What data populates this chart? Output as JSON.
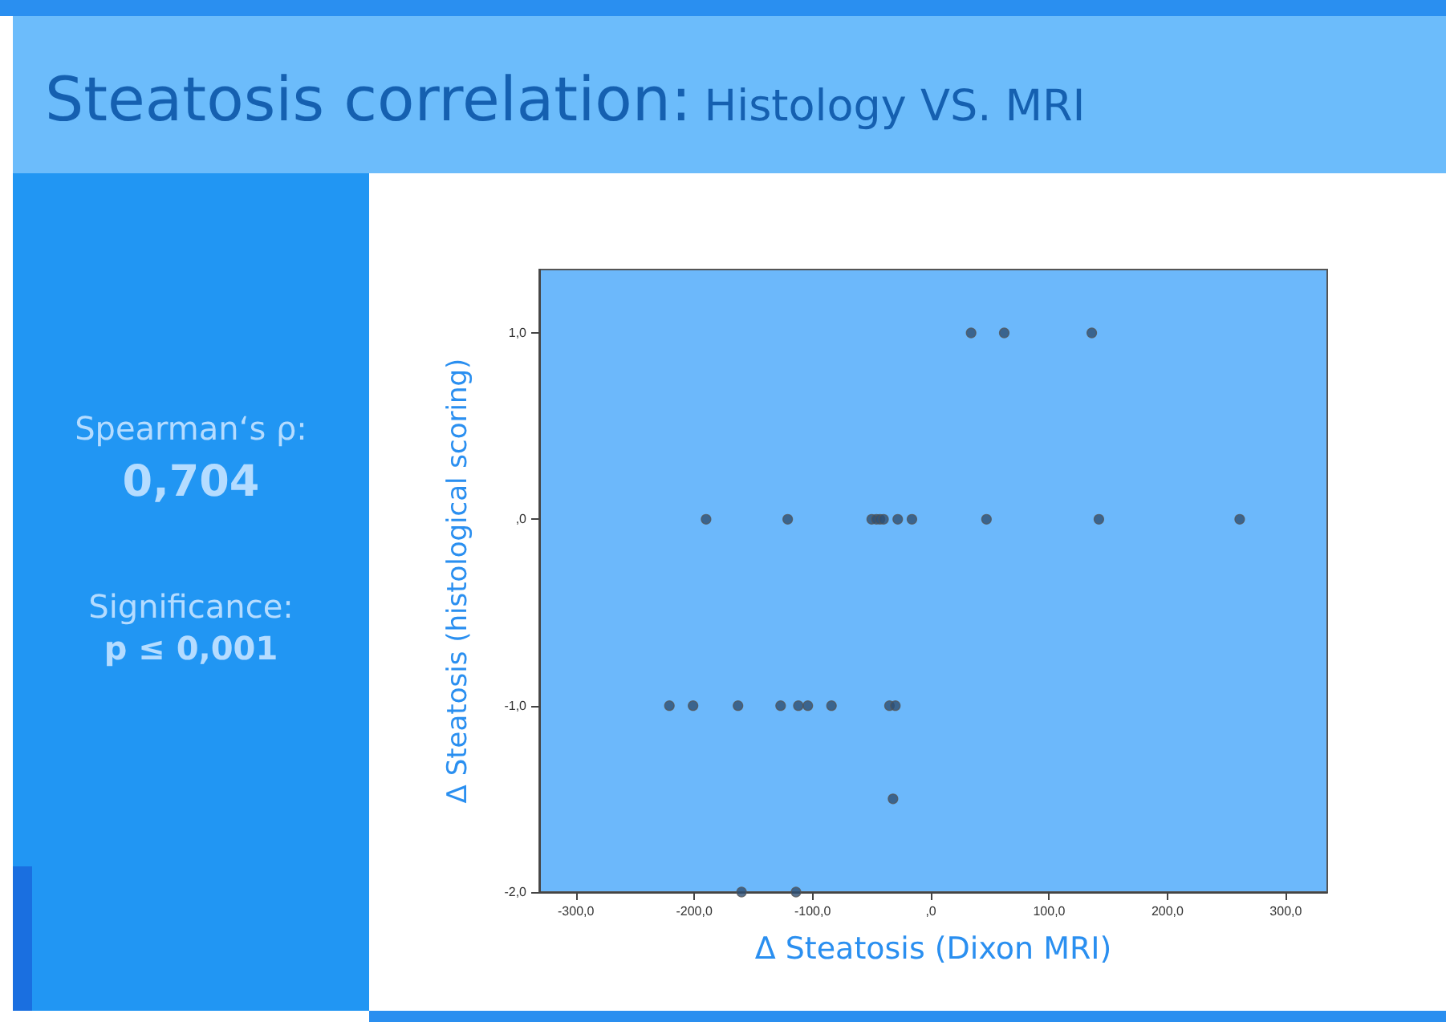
{
  "chart_data": {
    "type": "scatter",
    "title": "Steatosis correlation:",
    "subtitle": "Histology VS. MRI",
    "xlabel": "Δ Steatosis (Dixon MRI)",
    "ylabel": "Δ Steatosis (histological scoring)",
    "annotations": [
      "Spearman‘s ρ:",
      "0,704",
      "Significance:",
      "p ≤ 0,001"
    ],
    "series": [
      {
        "color": "#2e4f73",
        "x": [
          34,
          62,
          136,
          -190,
          -121,
          -50,
          -46,
          -43,
          -40,
          -28,
          -16,
          47,
          142,
          261,
          -221,
          -201,
          -163,
          -127,
          -112,
          -104,
          -84,
          -35,
          -30,
          -32,
          -160,
          -114
        ],
        "values": [
          1,
          1,
          1,
          0,
          0,
          0,
          0,
          0,
          0,
          0,
          0,
          0,
          0,
          0,
          -1,
          -1,
          -1,
          -1,
          -1,
          -1,
          -1,
          -1,
          -1,
          -1.5,
          -2,
          -2
        ]
      }
    ],
    "xlim": [
      -331,
      335
    ],
    "xticks": [
      {
        "value": -300,
        "label": "-300,0"
      },
      {
        "value": -200,
        "label": "-200,0"
      },
      {
        "value": -100,
        "label": "-100,0"
      },
      {
        "value": 0,
        "label": ",0"
      },
      {
        "value": 100,
        "label": "100,0"
      },
      {
        "value": 200,
        "label": "200,0"
      },
      {
        "value": 300,
        "label": "300,0"
      }
    ],
    "ylim": [
      -2,
      1.34
    ],
    "yticks": [
      {
        "value": -2,
        "label": "-2,0"
      },
      {
        "value": -1,
        "label": "-1,0"
      },
      {
        "value": 0,
        "label": ",0"
      },
      {
        "value": 1,
        "label": "1,0"
      }
    ],
    "grid": false,
    "marker": "circle"
  }
}
